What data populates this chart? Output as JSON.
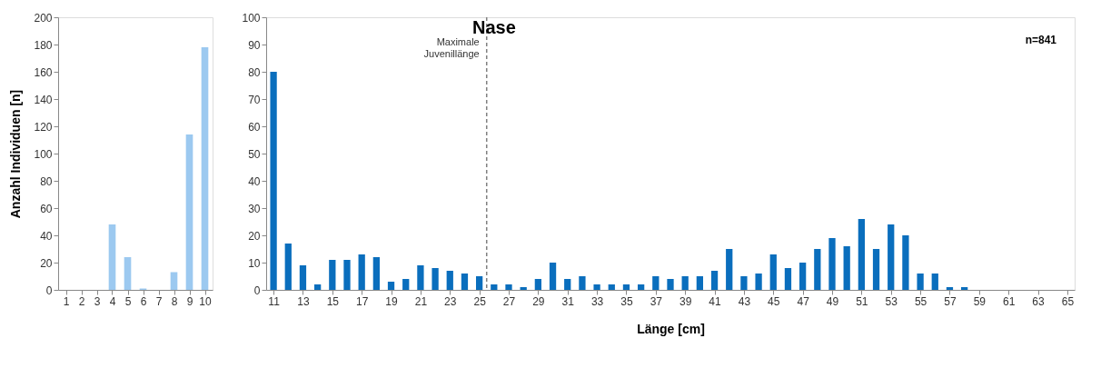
{
  "chart_data": [
    {
      "type": "bar",
      "ylabel": "Anzahl Individuen [n]",
      "x": [
        1,
        2,
        3,
        4,
        5,
        6,
        7,
        8,
        9,
        10
      ],
      "series": [
        {
          "color": "#9cc9f0",
          "values": [
            0,
            0,
            0,
            48,
            24,
            1,
            0,
            13,
            114,
            178
          ]
        }
      ],
      "xlim": [
        0.5,
        10.5
      ],
      "xticks": [
        1,
        2,
        3,
        4,
        5,
        6,
        7,
        8,
        9,
        10
      ],
      "ylim": [
        0,
        200
      ],
      "yticks": [
        0,
        20,
        40,
        60,
        80,
        100,
        120,
        140,
        160,
        180,
        200
      ],
      "grid": false
    },
    {
      "type": "bar",
      "title": "Nase",
      "xlabel": "Länge [cm]",
      "annotations": [
        "n=841"
      ],
      "x": [
        11,
        12,
        13,
        14,
        15,
        16,
        17,
        18,
        19,
        20,
        21,
        22,
        23,
        24,
        25,
        26,
        27,
        28,
        29,
        30,
        31,
        32,
        33,
        34,
        35,
        36,
        37,
        38,
        39,
        40,
        41,
        42,
        43,
        44,
        45,
        46,
        47,
        48,
        49,
        50,
        51,
        52,
        53,
        54,
        55,
        56,
        57,
        58,
        59,
        60,
        61,
        62,
        63,
        64,
        65
      ],
      "series": [
        {
          "color": "#0a6ebd",
          "values": [
            80,
            17,
            9,
            2,
            11,
            11,
            13,
            12,
            3,
            4,
            9,
            8,
            7,
            6,
            5,
            2,
            2,
            1,
            4,
            10,
            4,
            5,
            2,
            2,
            2,
            2,
            5,
            4,
            5,
            5,
            7,
            15,
            5,
            6,
            13,
            8,
            10,
            15,
            19,
            16,
            26,
            15,
            24,
            20,
            6,
            6,
            1,
            1,
            0,
            0,
            0,
            0,
            0,
            0,
            0
          ]
        }
      ],
      "xlim": [
        10.5,
        65.5
      ],
      "xticks": [
        11,
        13,
        15,
        17,
        19,
        21,
        23,
        25,
        27,
        29,
        31,
        33,
        35,
        37,
        39,
        41,
        43,
        45,
        47,
        49,
        51,
        53,
        55,
        57,
        59,
        61,
        63,
        65
      ],
      "ylim": [
        0,
        100
      ],
      "yticks": [
        0,
        10,
        20,
        30,
        40,
        50,
        60,
        70,
        80,
        90,
        100
      ],
      "ref_lines": [
        {
          "axis": "x",
          "value": 25.5,
          "label": "Maximale Juvenillänge",
          "color": "#808080",
          "line_style": "dashed"
        }
      ],
      "grid": false
    }
  ]
}
